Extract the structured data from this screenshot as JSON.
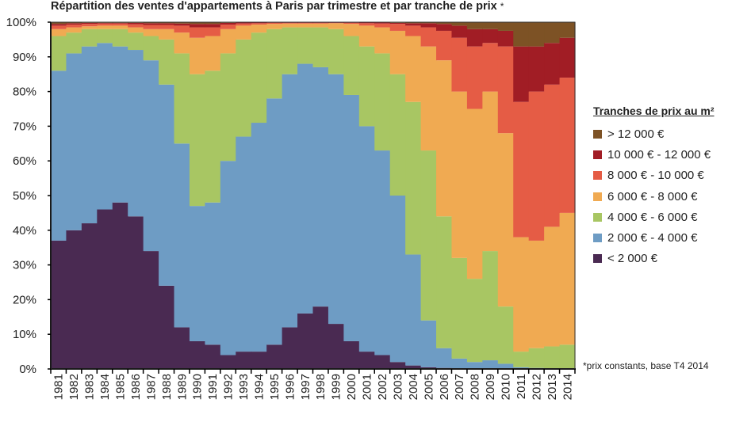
{
  "chart_data": {
    "type": "bar",
    "stacked": true,
    "title": "Répartition des ventes d'appartements à Paris par trimestre et par tranche de prix",
    "title_marker": "*",
    "xlabel": "",
    "ylabel": "",
    "ylim": [
      0,
      100
    ],
    "yticks": [
      "0%",
      "10%",
      "20%",
      "30%",
      "40%",
      "50%",
      "60%",
      "70%",
      "80%",
      "90%",
      "100%"
    ],
    "grid": false,
    "legend_title": "Tranches de prix au m²",
    "legend_position": "right",
    "footnote": "*prix constants, base T4 2014",
    "categories": [
      "1981",
      "1982",
      "1983",
      "1984",
      "1985",
      "1986",
      "1987",
      "1988",
      "1989",
      "1990",
      "1991",
      "1992",
      "1993",
      "1994",
      "1995",
      "1996",
      "1997",
      "1998",
      "1999",
      "2000",
      "2001",
      "2002",
      "2003",
      "2004",
      "2005",
      "2006",
      "2007",
      "2008",
      "2009",
      "2010",
      "2011",
      "2012",
      "2013",
      "2014"
    ],
    "series": [
      {
        "name": "< 2 000 €",
        "color": "#4a2a52",
        "values": [
          37,
          40,
          42,
          46,
          48,
          44,
          34,
          24,
          12,
          8,
          7,
          4,
          5,
          5,
          7,
          12,
          16,
          18,
          13,
          8,
          5,
          4,
          2,
          1,
          0.5,
          0.3,
          0.2,
          0,
          0,
          0,
          0,
          0,
          0,
          0
        ]
      },
      {
        "name": "2 000 € - 4 000 €",
        "color": "#6e9cc4",
        "values": [
          49,
          51,
          51,
          48,
          45,
          48,
          55,
          58,
          53,
          39,
          41,
          56,
          62,
          66,
          71,
          73,
          72,
          69,
          72,
          71,
          65,
          59,
          48,
          32,
          13.5,
          5.7,
          2.8,
          2,
          2.5,
          1.5,
          0.5,
          0.3,
          0.2,
          0.2
        ]
      },
      {
        "name": "4 000 € - 6 000 €",
        "color": "#a8c663",
        "values": [
          10,
          6,
          5,
          4,
          5,
          5,
          7,
          13,
          26,
          38,
          38,
          31,
          28,
          26,
          20,
          13.5,
          10.5,
          11.5,
          13,
          17,
          23,
          28,
          35,
          44,
          49,
          38,
          29,
          24,
          31.5,
          16.5,
          4.5,
          5.7,
          6.3,
          6.8
        ]
      },
      {
        "name": "6 000 € - 8 000 €",
        "color": "#f0aa52",
        "values": [
          2,
          1.5,
          0.8,
          1,
          1,
          1.5,
          2,
          3,
          6,
          10.5,
          10,
          7,
          4,
          2.3,
          1.5,
          1.1,
          1.1,
          1.1,
          1.7,
          3.5,
          6,
          7.5,
          12.5,
          19,
          30,
          45,
          48,
          49,
          46,
          50,
          33,
          31,
          34.5,
          38
        ]
      },
      {
        "name": "8 000 € - 10 000 €",
        "color": "#e55c45",
        "values": [
          1,
          0.8,
          0.7,
          0.6,
          0.6,
          0.9,
          1.2,
          1.2,
          2,
          3,
          2.5,
          1.3,
          0.6,
          0.4,
          0.3,
          0.2,
          0.2,
          0.2,
          0.1,
          0.3,
          0.7,
          1.1,
          2,
          3,
          5.5,
          8.5,
          15.5,
          18,
          14,
          25,
          39,
          43,
          41,
          39
        ]
      },
      {
        "name": "10 000 € - 12 000 €",
        "color": "#a11d25",
        "values": [
          0.5,
          0.4,
          0.3,
          0.2,
          0.2,
          0.4,
          0.5,
          0.5,
          0.6,
          1,
          1,
          0.5,
          0.3,
          0.2,
          0.1,
          0.1,
          0.1,
          0.1,
          0.1,
          0.1,
          0.2,
          0.3,
          0.3,
          0.7,
          1.2,
          2,
          3.5,
          5,
          4,
          4.5,
          16,
          13,
          12,
          11.5
        ]
      },
      {
        "name": "> 12 000 €",
        "color": "#7d5225",
        "values": [
          0.5,
          0.3,
          0.2,
          0.2,
          0.2,
          0.2,
          0.3,
          0.3,
          0.4,
          0.5,
          0.5,
          0.2,
          0.1,
          0.1,
          0.1,
          0.1,
          0.1,
          0.1,
          0.1,
          0.1,
          0.1,
          0.1,
          0.2,
          0.3,
          0.3,
          0.5,
          1,
          2,
          2,
          2.5,
          7,
          7,
          6,
          4.5
        ]
      }
    ]
  }
}
